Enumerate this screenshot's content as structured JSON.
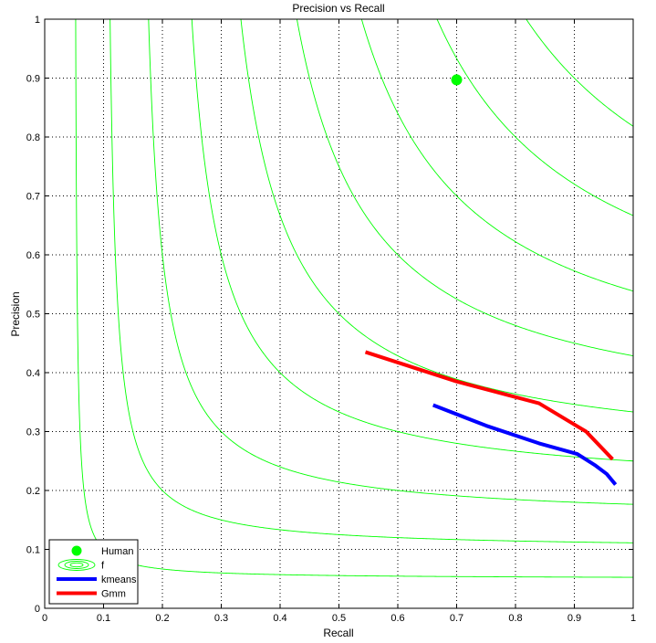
{
  "chart_data": {
    "type": "line",
    "title": "Precision vs Recall",
    "xlabel": "Recall",
    "ylabel": "Precision",
    "xlim": [
      0,
      1
    ],
    "ylim": [
      0,
      1
    ],
    "xticks": [
      "0",
      "0.1",
      "0.2",
      "0.3",
      "0.4",
      "0.5",
      "0.6",
      "0.7",
      "0.8",
      "0.9",
      "1"
    ],
    "yticks": [
      "0",
      "0.1",
      "0.2",
      "0.3",
      "0.4",
      "0.5",
      "0.6",
      "0.7",
      "0.8",
      "0.9",
      "1"
    ],
    "grid": true,
    "grid_style": "dotted",
    "legend_placement": "bottom-left",
    "iso_f_levels": [
      0.1,
      0.2,
      0.3,
      0.4,
      0.5,
      0.6,
      0.7,
      0.8,
      0.9
    ],
    "series": [
      {
        "name": "Human",
        "kind": "point",
        "color": "#00ff00",
        "x": [
          0.7
        ],
        "y": [
          0.897
        ]
      },
      {
        "name": "f",
        "kind": "contour",
        "color": "#00ff00"
      },
      {
        "name": "kmeans",
        "kind": "line",
        "color": "#0000ff",
        "x": [
          0.66,
          0.75,
          0.84,
          0.905,
          0.935,
          0.955,
          0.97
        ],
        "y": [
          0.345,
          0.31,
          0.28,
          0.262,
          0.243,
          0.228,
          0.21
        ]
      },
      {
        "name": "Gmm",
        "kind": "line",
        "color": "#ff0000",
        "x": [
          0.545,
          0.7,
          0.84,
          0.92,
          0.965
        ],
        "y": [
          0.435,
          0.385,
          0.348,
          0.3,
          0.253
        ]
      }
    ]
  }
}
